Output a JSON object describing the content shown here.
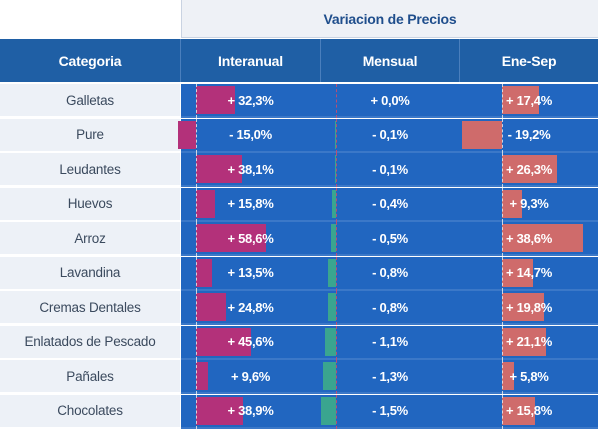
{
  "title": "Variacion de Precios",
  "headers": {
    "categoria": "Categoria",
    "interanual": "Interanual",
    "mensual": "Mensual",
    "ene_sep": "Ene-Sep"
  },
  "colors": {
    "header_bg": "#1f5fa5",
    "data_bg": "#2166c0",
    "interanual_bar": "#b3317a",
    "mensual_bar": "#3aa58f",
    "ene_sep_bar": "#cf6b6b"
  },
  "rows": [
    {
      "categoria": "Galletas",
      "interanual": "+ 32,3%",
      "mensual": "+ 0,0%",
      "ene_sep": "+ 17,4%"
    },
    {
      "categoria": "Pure",
      "interanual": "- 15,0%",
      "mensual": "- 0,1%",
      "ene_sep": "- 19,2%"
    },
    {
      "categoria": "Leudantes",
      "interanual": "+ 38,1%",
      "mensual": "- 0,1%",
      "ene_sep": "+ 26,3%"
    },
    {
      "categoria": "Huevos",
      "interanual": "+ 15,8%",
      "mensual": "- 0,4%",
      "ene_sep": "+ 9,3%"
    },
    {
      "categoria": "Arroz",
      "interanual": "+ 58,6%",
      "mensual": "- 0,5%",
      "ene_sep": "+ 38,6%"
    },
    {
      "categoria": "Lavandina",
      "interanual": "+ 13,5%",
      "mensual": "- 0,8%",
      "ene_sep": "+ 14,7%"
    },
    {
      "categoria": "Cremas Dentales",
      "interanual": "+ 24,8%",
      "mensual": "- 0,8%",
      "ene_sep": "+ 19,8%"
    },
    {
      "categoria": "Enlatados de Pescado",
      "interanual": "+ 45,6%",
      "mensual": "- 1,1%",
      "ene_sep": "+ 21,1%"
    },
    {
      "categoria": "Pañales",
      "interanual": "+ 9,6%",
      "mensual": "- 1,3%",
      "ene_sep": "+ 5,8%"
    },
    {
      "categoria": "Chocolates",
      "interanual": "+ 38,9%",
      "mensual": "- 1,5%",
      "ene_sep": "+ 15,8%"
    }
  ]
}
